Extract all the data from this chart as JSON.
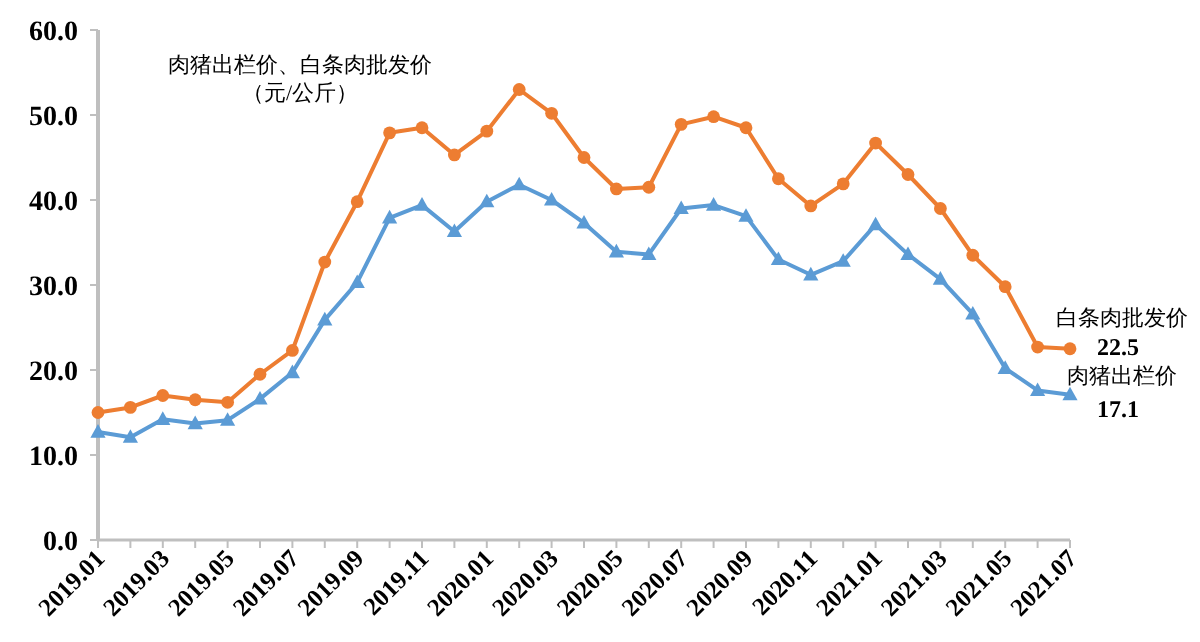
{
  "chart_data": {
    "type": "line",
    "title": "肉猪出栏价、白条肉批发价",
    "subtitle": "（元/公斤）",
    "categories": [
      "2019.01",
      null,
      "2019.03",
      null,
      "2019.05",
      null,
      "2019.07",
      null,
      "2019.09",
      null,
      "2019.11",
      null,
      "2020.01",
      null,
      "2020.03",
      null,
      "2020.05",
      null,
      "2020.07",
      null,
      "2020.09",
      null,
      "2020.11",
      null,
      "2021.01",
      null,
      "2021.03",
      null,
      "2021.05",
      null,
      "2021.07"
    ],
    "series": [
      {
        "name": "白条肉批发价",
        "color": "#ed7d31",
        "marker": "circle",
        "values": [
          15.0,
          15.6,
          17.0,
          16.5,
          16.2,
          19.5,
          22.3,
          32.7,
          39.8,
          47.9,
          48.5,
          45.3,
          48.1,
          53.0,
          50.2,
          45.0,
          41.3,
          41.5,
          48.9,
          49.8,
          48.5,
          42.5,
          39.3,
          41.9,
          46.7,
          43.0,
          39.0,
          33.5,
          29.8,
          22.7,
          22.5
        ],
        "value_labels": [
          null,
          null,
          null,
          null,
          null,
          null,
          null,
          null,
          null,
          null,
          null,
          null,
          null,
          null,
          null,
          null,
          null,
          null,
          null,
          null,
          null,
          null,
          null,
          null,
          null,
          null,
          null,
          null,
          null,
          null,
          "22.5"
        ]
      },
      {
        "name": "肉猪出栏价",
        "color": "#5b9bd5",
        "marker": "triangle",
        "values": [
          12.7,
          12.1,
          14.2,
          13.7,
          14.1,
          16.6,
          19.7,
          25.9,
          30.3,
          37.9,
          39.4,
          36.3,
          39.8,
          41.8,
          40.0,
          37.3,
          33.9,
          33.6,
          39.0,
          39.4,
          38.1,
          33.0,
          31.2,
          32.8,
          37.1,
          33.6,
          30.7,
          26.6,
          20.2,
          17.6,
          17.1
        ],
        "value_labels": [
          null,
          null,
          null,
          null,
          null,
          null,
          null,
          null,
          null,
          null,
          null,
          null,
          null,
          null,
          null,
          null,
          null,
          null,
          null,
          null,
          null,
          null,
          null,
          null,
          null,
          null,
          null,
          null,
          null,
          null,
          "17.1"
        ]
      }
    ],
    "ylim": [
      0,
      60
    ],
    "yticks": [
      {
        "value": 0,
        "label": "0.0"
      },
      {
        "value": 10,
        "label": "10.0"
      },
      {
        "value": 20,
        "label": "20.0"
      },
      {
        "value": 30,
        "label": "30.0"
      },
      {
        "value": 40,
        "label": "40.0"
      },
      {
        "value": 50,
        "label": "50.0"
      },
      {
        "value": 60,
        "label": "60.0"
      }
    ],
    "grid": false
  }
}
